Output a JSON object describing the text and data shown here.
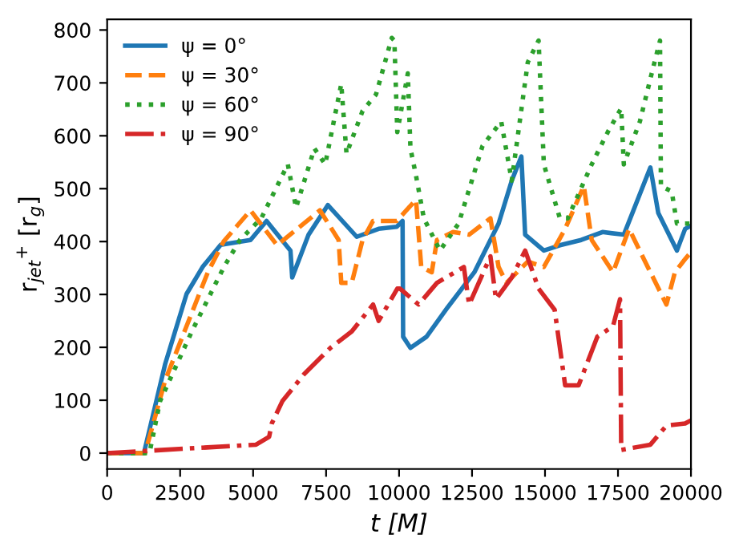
{
  "chart_data": {
    "type": "line",
    "xlabel": "t [M]",
    "ylabel": "r$_{jet}$$^{+}$ [r$_{g}$]",
    "xlim": [
      0,
      20000
    ],
    "ylim": [
      -30,
      820
    ],
    "xticks": [
      0,
      2500,
      5000,
      7500,
      10000,
      12500,
      15000,
      17500,
      20000
    ],
    "yticks": [
      0,
      100,
      200,
      300,
      400,
      500,
      600,
      700,
      800
    ],
    "grid": false,
    "legend": "top left",
    "marker": "none",
    "series": [
      {
        "name": "ψ = 0°",
        "color": "#1f77b4",
        "line_style": "solid",
        "x": [
          0,
          1260,
          1990,
          2720,
          3270,
          3890,
          4910,
          5460,
          6280,
          6340,
          6900,
          7560,
          8550,
          9300,
          9920,
          10120,
          10140,
          10390,
          10940,
          11670,
          12580,
          13410,
          13860,
          14190,
          14320,
          14960,
          15510,
          16240,
          16970,
          17700,
          18430,
          18610,
          18880,
          19520,
          19800,
          20000
        ],
        "values": [
          0,
          0,
          169,
          301,
          352,
          394,
          403,
          439,
          383,
          332,
          413,
          469,
          409,
          424,
          428,
          439,
          220,
          199,
          220,
          276,
          342,
          434,
          515,
          561,
          413,
          383,
          393,
          403,
          418,
          413,
          515,
          540,
          454,
          383,
          424,
          430
        ]
      },
      {
        "name": "ψ = 30°",
        "color": "#ff7f0e",
        "line_style": "dashed",
        "x": [
          0,
          1300,
          1990,
          3450,
          3990,
          4910,
          5820,
          7290,
          7930,
          8020,
          8380,
          8750,
          9110,
          9920,
          10580,
          10760,
          11120,
          11300,
          11850,
          12400,
          13130,
          13410,
          13680,
          14410,
          14960,
          15690,
          16330,
          16600,
          17330,
          17880,
          18430,
          19160,
          19450,
          19800,
          20000
        ],
        "values": [
          0,
          0,
          138,
          342,
          400,
          459,
          393,
          459,
          403,
          322,
          322,
          403,
          439,
          439,
          479,
          352,
          342,
          403,
          418,
          413,
          444,
          352,
          322,
          362,
          352,
          424,
          505,
          403,
          342,
          424,
          362,
          281,
          342,
          367,
          380
        ]
      },
      {
        "name": "ψ = 60°",
        "color": "#2ca02c",
        "line_style": "dotted",
        "x": [
          0,
          1450,
          1810,
          2900,
          4000,
          4550,
          5280,
          6190,
          6470,
          7100,
          7470,
          8020,
          8200,
          8750,
          9210,
          9750,
          9840,
          9940,
          10300,
          10390,
          10580,
          10850,
          11400,
          12040,
          12860,
          13500,
          13860,
          14410,
          14780,
          14960,
          15510,
          15780,
          16600,
          17150,
          17610,
          17700,
          18250,
          18610,
          18940,
          18970,
          19340,
          19520,
          20000
        ],
        "values": [
          0,
          0,
          98,
          230,
          352,
          403,
          444,
          546,
          464,
          576,
          546,
          698,
          566,
          647,
          678,
          785,
          780,
          607,
          718,
          576,
          525,
          444,
          383,
          434,
          581,
          627,
          515,
          739,
          780,
          546,
          444,
          444,
          546,
          607,
          652,
          546,
          627,
          708,
          780,
          505,
          495,
          434,
          434
        ]
      },
      {
        "name": "ψ = 90°",
        "color": "#d62728",
        "line_style": "dashdot",
        "x": [
          0,
          5100,
          5550,
          5640,
          6000,
          6740,
          7650,
          8380,
          9110,
          9300,
          9940,
          10030,
          10670,
          11300,
          12220,
          12400,
          13130,
          13320,
          13860,
          14320,
          14780,
          15330,
          15690,
          16150,
          16790,
          17330,
          17570,
          17610,
          18610,
          19160,
          19800,
          20000
        ],
        "values": [
          0,
          16,
          31,
          56,
          98,
          149,
          199,
          230,
          281,
          250,
          311,
          311,
          281,
          322,
          352,
          281,
          372,
          291,
          332,
          383,
          311,
          271,
          128,
          128,
          220,
          240,
          291,
          6,
          16,
          52,
          56,
          62
        ]
      }
    ]
  }
}
